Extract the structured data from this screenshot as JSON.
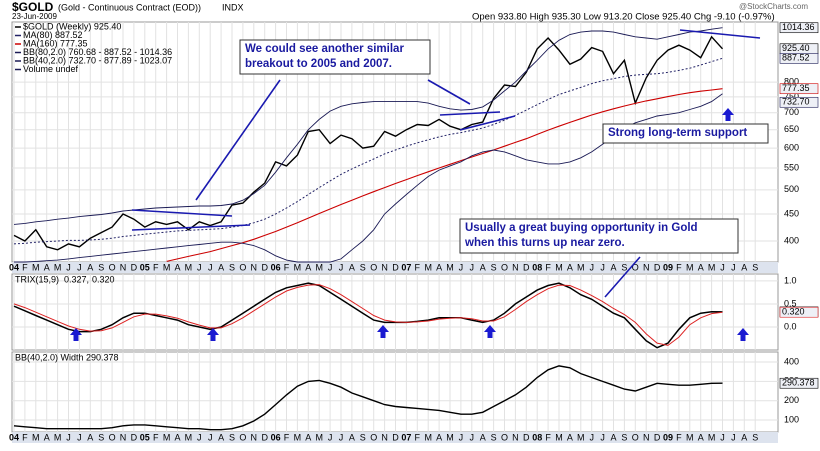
{
  "chart_data": [
    {
      "type": "line",
      "symbol": "$GOLD",
      "description": "(Gold - Continuous Contract (EOD))",
      "exchange": "INDX",
      "date": "23-Jun-2009",
      "quote": "Open 933.80  High 935.30  Low 913.20  Close 925.40  Chg -9.10 (-0.97%)",
      "credit": "@StockCharts.com",
      "log": true,
      "grid": true,
      "ylim": [
        365,
        1040
      ],
      "yticks": [
        400,
        450,
        500,
        550,
        600,
        650,
        700,
        750,
        800
      ],
      "categories": [
        "04",
        "F",
        "M",
        "A",
        "M",
        "J",
        "J",
        "A",
        "S",
        "O",
        "N",
        "D",
        "05",
        "F",
        "M",
        "A",
        "M",
        "J",
        "J",
        "A",
        "S",
        "O",
        "N",
        "D",
        "06",
        "F",
        "M",
        "A",
        "M",
        "J",
        "J",
        "A",
        "S",
        "O",
        "N",
        "D",
        "07",
        "F",
        "M",
        "A",
        "M",
        "J",
        "J",
        "A",
        "S",
        "O",
        "N",
        "D",
        "08",
        "F",
        "M",
        "A",
        "M",
        "J",
        "J",
        "A",
        "S",
        "O",
        "N",
        "D",
        "09",
        "F",
        "M",
        "A",
        "M",
        "J",
        "J",
        "A",
        "S"
      ],
      "series": [
        {
          "name": "$GOLD (Weekly) 925.40",
          "color": "#000000",
          "width": 1.4,
          "values": [
            410,
            400,
            420,
            390,
            385,
            395,
            390,
            405,
            415,
            425,
            450,
            440,
            425,
            435,
            430,
            435,
            420,
            435,
            428,
            435,
            468,
            472,
            495,
            515,
            565,
            555,
            582,
            645,
            650,
            612,
            635,
            625,
            600,
            605,
            645,
            632,
            650,
            665,
            662,
            680,
            660,
            650,
            665,
            672,
            745,
            790,
            785,
            835,
            925,
            970,
            920,
            865,
            885,
            930,
            915,
            830,
            880,
            730,
            815,
            880,
            920,
            940,
            920,
            890,
            975,
            925.4,
            null,
            null,
            null
          ]
        },
        {
          "name": "MA(80) 887.52",
          "color": "#222266",
          "width": 1,
          "dash": true,
          "values": [
            395,
            396,
            398,
            399,
            400,
            401,
            401,
            402,
            403,
            405,
            408,
            410,
            412,
            414,
            416,
            418,
            419,
            420,
            421,
            422,
            425,
            428,
            433,
            440,
            450,
            462,
            475,
            490,
            505,
            520,
            535,
            548,
            560,
            572,
            585,
            595,
            605,
            614,
            622,
            630,
            637,
            642,
            648,
            655,
            665,
            678,
            692,
            708,
            725,
            742,
            758,
            770,
            782,
            795,
            805,
            812,
            820,
            825,
            828,
            830,
            835,
            842,
            850,
            862,
            875,
            887.52,
            null,
            null,
            null
          ]
        },
        {
          "name": "MA(160) 777.35",
          "color": "#cc0000",
          "width": 1.1,
          "values": [
            null,
            null,
            null,
            null,
            null,
            null,
            null,
            null,
            null,
            null,
            null,
            null,
            null,
            null,
            366,
            370,
            374,
            378,
            382,
            387,
            392,
            397,
            403,
            410,
            417,
            425,
            433,
            442,
            451,
            460,
            469,
            478,
            487,
            496,
            505,
            514,
            523,
            532,
            541,
            550,
            559,
            568,
            577,
            586,
            595,
            605,
            615,
            625,
            637,
            649,
            660,
            671,
            682,
            693,
            703,
            712,
            721,
            729,
            737,
            744,
            751,
            758,
            764,
            769,
            773,
            777.35,
            null,
            null,
            null
          ]
        },
        {
          "name": "BB(80,2.0) 760.68 - 887.52 - 1014.36",
          "color": "#1a1a55",
          "width": 0.9,
          "values": [
            430,
            432,
            435,
            437,
            440,
            442,
            445,
            447,
            449,
            452,
            456,
            458,
            460,
            462,
            463,
            464,
            465,
            466,
            466,
            467,
            470,
            478,
            492,
            510,
            540,
            575,
            610,
            650,
            680,
            705,
            720,
            728,
            732,
            735,
            735,
            735,
            735,
            735,
            730,
            720,
            712,
            708,
            710,
            718,
            740,
            770,
            800,
            840,
            880,
            925,
            960,
            985,
            995,
            1000,
            1000,
            995,
            985,
            975,
            970,
            965,
            975,
            985,
            995,
            1000,
            1008,
            1014.36,
            null,
            null,
            null
          ],
          "lower_values": [
            365,
            365,
            366,
            367,
            368,
            370,
            372,
            374,
            376,
            378,
            380,
            382,
            384,
            386,
            388,
            390,
            392,
            394,
            396,
            398,
            398,
            396,
            392,
            385,
            375,
            368,
            365,
            365,
            365,
            365,
            370,
            385,
            400,
            420,
            450,
            470,
            490,
            510,
            530,
            545,
            555,
            565,
            580,
            590,
            595,
            590,
            580,
            570,
            565,
            560,
            560,
            565,
            575,
            590,
            610,
            630,
            655,
            670,
            680,
            690,
            695,
            700,
            710,
            720,
            735,
            760.68,
            null,
            null,
            null
          ]
        }
      ],
      "legend_extra": [
        "BB(40,2.0) 732.70 - 877.89 - 1023.07",
        "Volume undef"
      ],
      "right_labels": [
        {
          "value": 1014.36,
          "label": "1014.36",
          "color": "#000000"
        },
        {
          "value": 925.4,
          "label": "925.40",
          "color": "#000000"
        },
        {
          "value": 887.52,
          "label": "887.52",
          "color": "#1a1a55"
        },
        {
          "value": 777.35,
          "label": "777.35",
          "color": "#cc0000"
        },
        {
          "value": 732.7,
          "label": "732.70",
          "color": "#1a1a55"
        }
      ],
      "annotations": [
        {
          "lines": [
            "We could see another similar",
            "breakout to 2005 and 2007."
          ]
        },
        {
          "lines": [
            "Strong long-term support"
          ]
        },
        {
          "lines": [
            "Usually a great buying opportunity in Gold",
            "when this turns up near zero."
          ]
        }
      ]
    },
    {
      "type": "line",
      "label": "TRIX(15,9)",
      "grid": true,
      "ylim": [
        -0.5,
        1.15
      ],
      "yticks": [
        {
          "value": 1,
          "label": "1.0"
        },
        0.5,
        {
          "value": 0,
          "label": "0.0"
        }
      ],
      "series": [
        {
          "name": "0.327,",
          "color": "#000000",
          "width": 1.5,
          "values": [
            0.45,
            0.35,
            0.25,
            0.15,
            0.05,
            -0.05,
            -0.1,
            -0.1,
            -0.05,
            0.05,
            0.2,
            0.3,
            0.3,
            0.25,
            0.2,
            0.15,
            0.05,
            0.0,
            -0.05,
            0.0,
            0.15,
            0.3,
            0.45,
            0.6,
            0.75,
            0.85,
            0.9,
            0.95,
            0.9,
            0.75,
            0.6,
            0.45,
            0.3,
            0.15,
            0.1,
            0.1,
            0.1,
            0.12,
            0.15,
            0.2,
            0.2,
            0.2,
            0.15,
            0.1,
            0.15,
            0.3,
            0.5,
            0.65,
            0.8,
            0.9,
            0.95,
            0.85,
            0.7,
            0.6,
            0.45,
            0.3,
            0.2,
            -0.05,
            -0.3,
            -0.45,
            -0.35,
            -0.05,
            0.2,
            0.3,
            0.33,
            0.327,
            null,
            null,
            null
          ]
        },
        {
          "name": "0.320",
          "color": "#dd2222",
          "width": 1,
          "values": [
            0.5,
            0.42,
            0.32,
            0.22,
            0.12,
            0.02,
            -0.05,
            -0.09,
            -0.08,
            -0.02,
            0.1,
            0.22,
            0.28,
            0.28,
            0.24,
            0.19,
            0.11,
            0.04,
            -0.02,
            -0.02,
            0.07,
            0.2,
            0.35,
            0.5,
            0.65,
            0.78,
            0.86,
            0.91,
            0.92,
            0.83,
            0.7,
            0.55,
            0.4,
            0.25,
            0.15,
            0.11,
            0.1,
            0.11,
            0.13,
            0.17,
            0.19,
            0.2,
            0.18,
            0.13,
            0.13,
            0.22,
            0.38,
            0.55,
            0.7,
            0.83,
            0.91,
            0.9,
            0.8,
            0.68,
            0.55,
            0.4,
            0.27,
            0.1,
            -0.15,
            -0.35,
            -0.4,
            -0.22,
            0.05,
            0.2,
            0.29,
            0.32,
            null,
            null,
            null
          ]
        }
      ],
      "right_labels": [
        {
          "value": 0.327,
          "label": "0.327",
          "color": "#000000"
        },
        {
          "value": 0.32,
          "label": "0.320",
          "color": "#dd2222"
        }
      ]
    },
    {
      "type": "line",
      "label": "BB(40,2.0) Width 290.378",
      "grid": true,
      "ylim": [
        38,
        452
      ],
      "yticks": [
        400,
        300,
        200,
        100
      ],
      "categories": [
        "04",
        "F",
        "M",
        "A",
        "M",
        "J",
        "J",
        "A",
        "S",
        "O",
        "N",
        "D",
        "05",
        "F",
        "M",
        "A",
        "M",
        "J",
        "J",
        "A",
        "S",
        "O",
        "N",
        "D",
        "06",
        "F",
        "M",
        "A",
        "M",
        "J",
        "J",
        "A",
        "S",
        "O",
        "N",
        "D",
        "07",
        "F",
        "M",
        "A",
        "M",
        "J",
        "J",
        "A",
        "S",
        "O",
        "N",
        "D",
        "08",
        "F",
        "M",
        "A",
        "M",
        "J",
        "J",
        "A",
        "S",
        "O",
        "N",
        "D",
        "09",
        "F",
        "M",
        "A",
        "M",
        "J",
        "J",
        "A",
        "S"
      ],
      "series": [
        {
          "color": "#000000",
          "width": 1.4,
          "values": [
            70,
            65,
            60,
            55,
            55,
            55,
            55,
            55,
            55,
            60,
            70,
            75,
            75,
            70,
            65,
            60,
            55,
            55,
            50,
            50,
            55,
            70,
            95,
            130,
            180,
            230,
            275,
            300,
            305,
            290,
            270,
            240,
            220,
            200,
            180,
            170,
            165,
            160,
            155,
            150,
            140,
            130,
            130,
            140,
            170,
            200,
            230,
            270,
            320,
            360,
            380,
            370,
            340,
            320,
            300,
            280,
            260,
            250,
            270,
            290,
            285,
            280,
            280,
            285,
            290,
            290.378,
            null,
            null,
            null
          ]
        }
      ],
      "right_labels": [
        {
          "value": 290.378,
          "label": "290.378",
          "color": "#000000"
        }
      ]
    }
  ]
}
